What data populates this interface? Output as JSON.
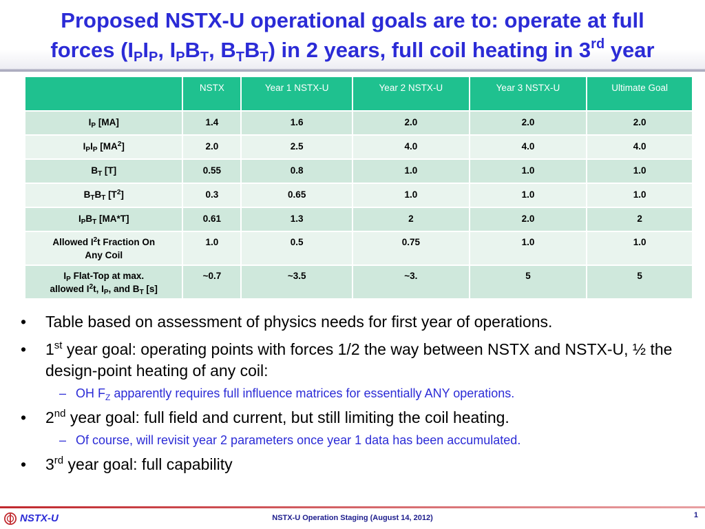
{
  "title": {
    "line1": "Proposed NSTX-U operational goals are to: operate at full",
    "line2_a": "forces (I",
    "sub_p1": "P",
    "line2_b": "I",
    "sub_p2": "P",
    "line2_c": ", I",
    "sub_p3": "P",
    "line2_d": "B",
    "sub_t1": "T",
    "line2_e": ", B",
    "sub_t2": "T",
    "line2_f": "B",
    "sub_t3": "T",
    "line2_g": ") in 2 years, full coil heating in 3",
    "sup_rd": "rd",
    "line2_h": " year"
  },
  "table": {
    "headers": [
      "",
      "NSTX",
      "Year 1 NSTX-U",
      "Year 2 NSTX-U",
      "Year 3 NSTX-U",
      "Ultimate Goal"
    ],
    "row_labels": {
      "ip": {
        "a": "I",
        "sub": "P",
        "b": " [MA]"
      },
      "ipip": {
        "a": "I",
        "sub1": "P",
        "b": "I",
        "sub2": "P",
        "c": " [MA",
        "sup": "2",
        "d": "]"
      },
      "bt": {
        "a": "B",
        "sub": "T",
        "b": " [T]"
      },
      "btbt": {
        "a": "B",
        "sub1": "T",
        "b": "B",
        "sub2": "T",
        "c": " [T",
        "sup": "2",
        "d": "]"
      },
      "ipbt": {
        "a": "I",
        "sub1": "P",
        "b": "B",
        "sub2": "T",
        "c": " [MA*T]"
      },
      "i2t": {
        "a": "Allowed I",
        "sup": "2",
        "b": "t Fraction On",
        "c": "Any Coil"
      },
      "flattop": {
        "a": "I",
        "sub1": "P",
        "b": " Flat-Top at max.",
        "c": "allowed I",
        "sup": "2",
        "d": "t, I",
        "sub2": "P",
        "e": ", and B",
        "sub3": "T",
        "f": " [s]"
      }
    },
    "rows": [
      [
        "1.4",
        "1.6",
        "2.0",
        "2.0",
        "2.0"
      ],
      [
        "2.0",
        "2.5",
        "4.0",
        "4.0",
        "4.0"
      ],
      [
        "0.55",
        "0.8",
        "1.0",
        "1.0",
        "1.0"
      ],
      [
        "0.3",
        "0.65",
        "1.0",
        "1.0",
        "1.0"
      ],
      [
        "0.61",
        "1.3",
        "2",
        "2.0",
        "2"
      ],
      [
        "1.0",
        "0.5",
        "0.75",
        "1.0",
        "1.0"
      ],
      [
        "~0.7",
        "~3.5",
        "~3.",
        "5",
        "5"
      ]
    ]
  },
  "bullets": {
    "b1": "Table based on assessment of physics needs for first year of operations.",
    "b2_num": "1",
    "b2_sup": "st",
    "b2_text": " year goal: operating points with forces 1/2 the way between NSTX and NSTX-U, ½ the design-point heating of any coil:",
    "b2_sub_a": "OH F",
    "b2_sub_z": "Z",
    "b2_sub_b": " apparently requires full influence matrices for essentially ANY operations.",
    "b3_num": "2",
    "b3_sup": "nd",
    "b3_text": " year goal: full field and current, but still limiting the coil heating.",
    "b3_sub": "Of course, will revisit year 2 parameters once year 1 data has been accumulated.",
    "b4_num": "3",
    "b4_sup": "rd",
    "b4_text": " year goal: full capability",
    "bullet_glyph": "•",
    "dash_glyph": "–"
  },
  "footer": {
    "logo_text": "NSTX-U",
    "center": "NSTX-U Operation Staging (August 14, 2012)",
    "page": "1"
  },
  "colors": {
    "title_blue": "#2b2bd6",
    "table_header": "#1fc18f",
    "row_dark": "#cfe8dc",
    "row_light": "#e9f4ee",
    "footer_red": "#c0282d"
  }
}
